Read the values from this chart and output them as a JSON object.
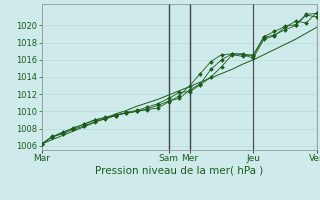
{
  "background_color": "#ceeaea",
  "grid_color": "#b0d8d8",
  "line_color": "#1a5c1a",
  "dark_vline_color": "#444444",
  "title": "Pression niveau de la mer( hPa )",
  "title_fontsize": 7.5,
  "title_color": "#1a5c1a",
  "x_ticks_labels": [
    "Mar",
    "Sam",
    "Mer",
    "Jeu",
    "Ven"
  ],
  "x_ticks_values": [
    0,
    12,
    14,
    20,
    26
  ],
  "vline_positions": [
    12,
    14,
    20,
    26
  ],
  "ylim": [
    1005.5,
    1022.5
  ],
  "yticks": [
    1006,
    1008,
    1010,
    1012,
    1014,
    1016,
    1018,
    1020
  ],
  "ytick_fontsize": 6,
  "xtick_fontsize": 6.5,
  "series_with_markers": [
    [
      1006.2,
      1007.0,
      1007.6,
      1008.0,
      1008.5,
      1009.0,
      1009.3,
      1009.6,
      1009.8,
      1010.0,
      1010.2,
      1010.4,
      1011.1,
      1011.8,
      1013.0,
      1014.4,
      1015.8,
      1016.6,
      1016.7,
      1016.7,
      1016.5,
      1018.6,
      1018.9,
      1019.5,
      1020.0,
      1021.2,
      1021.0
    ],
    [
      1006.2,
      1007.1,
      1007.5,
      1008.1,
      1008.5,
      1009.0,
      1009.2,
      1009.5,
      1009.8,
      1010.0,
      1010.3,
      1010.7,
      1011.2,
      1011.5,
      1012.5,
      1013.2,
      1014.9,
      1016.0,
      1016.7,
      1016.6,
      1016.2,
      1018.4,
      1018.8,
      1019.8,
      1020.5,
      1020.3,
      1021.5
    ],
    [
      1006.2,
      1007.0,
      1007.4,
      1007.9,
      1008.3,
      1008.8,
      1009.1,
      1009.5,
      1009.9,
      1010.1,
      1010.5,
      1010.9,
      1011.5,
      1012.2,
      1012.3,
      1013.1,
      1014.0,
      1015.2,
      1016.6,
      1016.4,
      1016.6,
      1018.7,
      1019.3,
      1019.9,
      1020.1,
      1021.3,
      1021.4
    ]
  ],
  "series_trend": [
    1006.2,
    1006.7,
    1007.2,
    1007.7,
    1008.2,
    1008.7,
    1009.2,
    1009.7,
    1010.1,
    1010.6,
    1011.0,
    1011.4,
    1011.9,
    1012.4,
    1012.9,
    1013.4,
    1013.9,
    1014.4,
    1014.9,
    1015.5,
    1016.0,
    1016.6,
    1017.2,
    1017.8,
    1018.4,
    1019.1,
    1019.8
  ]
}
